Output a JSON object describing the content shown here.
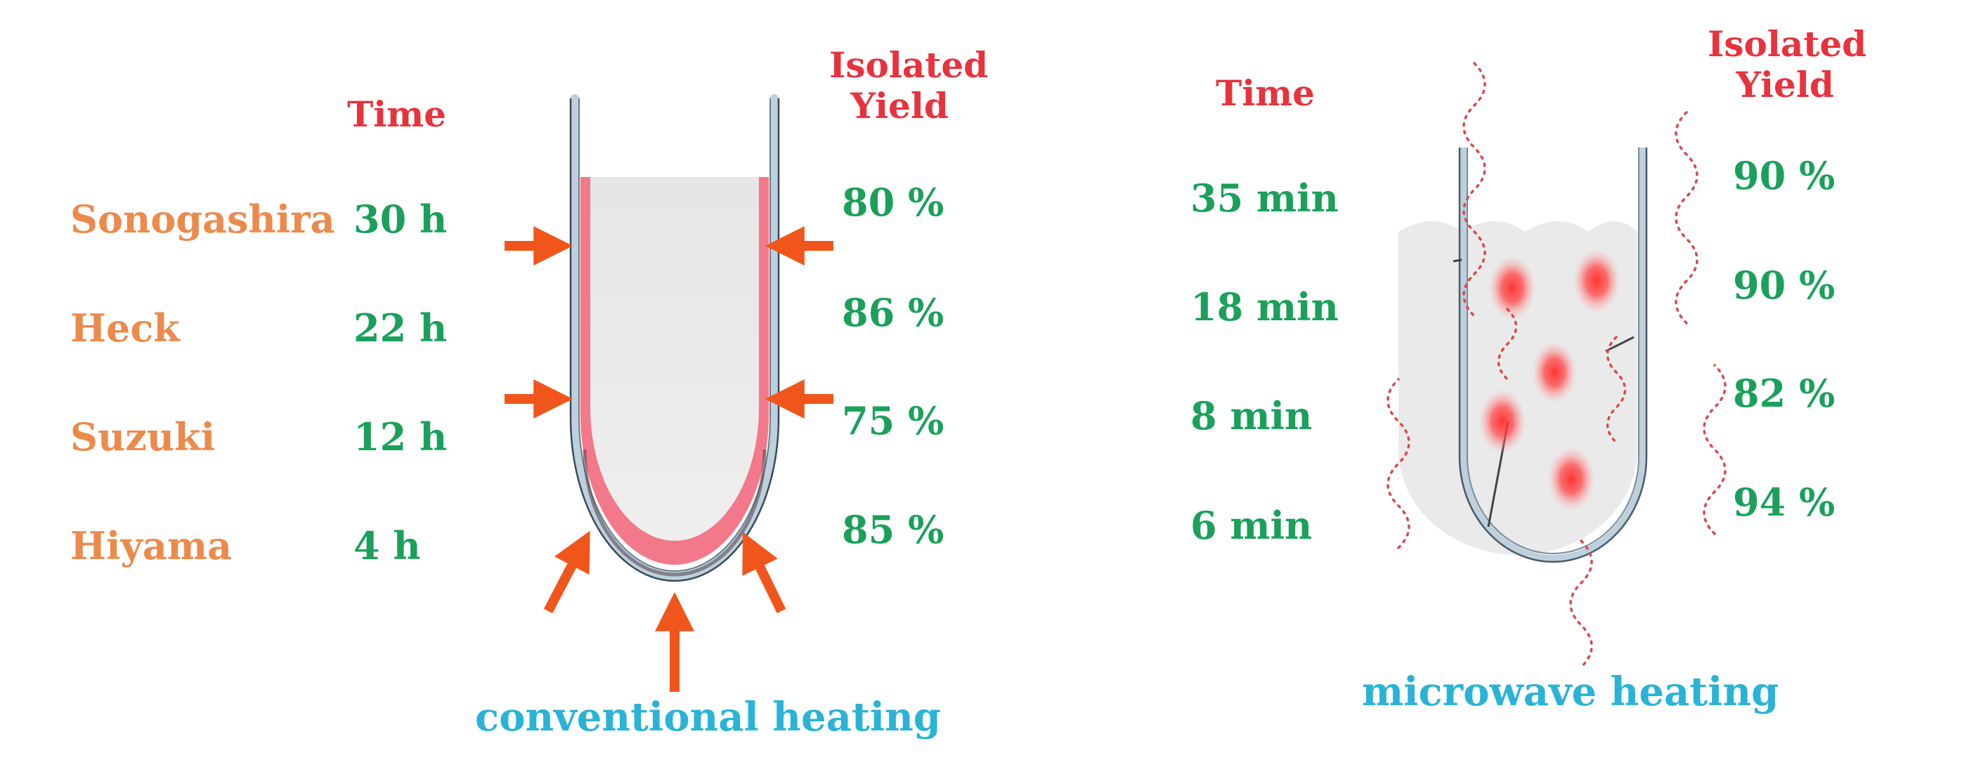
{
  "colors": {
    "header": "#e8323c",
    "reaction": "#ec8a4c",
    "value": "#1aa05a",
    "caption": "#29b3d6",
    "arrow": "#f0561c",
    "liquid": "#e5e5e5",
    "hot_layer": "#f3788a",
    "glass": "#bcd0de",
    "wave": "#d84a4a"
  },
  "conventional": {
    "time_header": "Time",
    "yield_header_line1": "Isolated",
    "yield_header_line2": "Yield",
    "caption": "conventional heating",
    "rows": [
      {
        "reaction": "Sonogashira",
        "time": "30 h",
        "yield": "80 %"
      },
      {
        "reaction": "Heck",
        "time": "22 h",
        "yield": "86 %"
      },
      {
        "reaction": "Suzuki",
        "time": "12 h",
        "yield": "75 %"
      },
      {
        "reaction": "Hiyama",
        "time": "4 h",
        "yield": "85 %"
      }
    ]
  },
  "microwave": {
    "time_header": "Time",
    "yield_header_line1": "Isolated",
    "yield_header_line2": "Yield",
    "caption": "microwave heating",
    "rows": [
      {
        "time": "35 min",
        "yield": "90 %"
      },
      {
        "time": "18 min",
        "yield": "90 %"
      },
      {
        "time": "8 min",
        "yield": "82 %"
      },
      {
        "time": "6 min",
        "yield": "94 %"
      }
    ]
  }
}
